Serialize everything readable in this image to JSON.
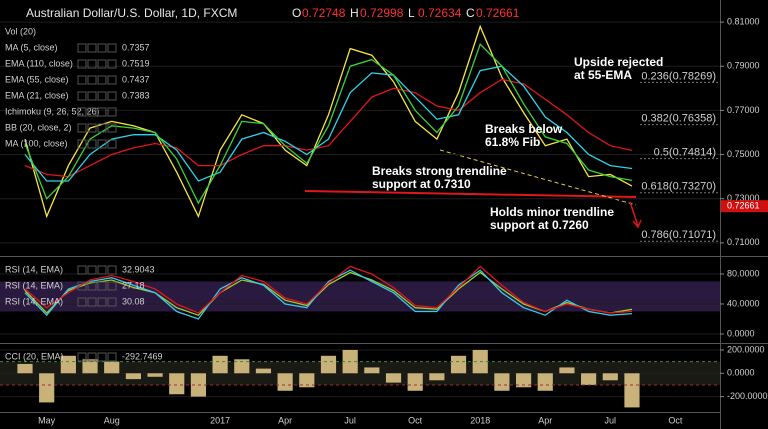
{
  "chart_data": [
    {
      "type": "line",
      "title": "Australian Dollar/U.S. Dollar, 1D, FXCM",
      "ohlc": [
        {
          "label": "O",
          "value": 0.72748
        },
        {
          "label": "H",
          "value": 0.72998
        },
        {
          "label": "L",
          "value": 0.72634
        },
        {
          "label": "C",
          "value": 0.72661
        }
      ],
      "indicators": [
        "Vol (20)",
        "Ichimoku (9, 26, 52, 26)",
        "BB (20, close, 2)",
        "MA (100, close)"
      ],
      "series": [
        {
          "name": "MA (5, close)",
          "color": "#f5e642",
          "values": [
            0.757,
            0.722,
            0.745,
            0.762,
            0.765,
            0.763,
            0.76,
            0.742,
            0.722,
            0.752,
            0.768,
            0.764,
            0.752,
            0.745,
            0.768,
            0.798,
            0.795,
            0.783,
            0.765,
            0.757,
            0.778,
            0.808,
            0.785,
            0.769,
            0.754,
            0.757,
            0.74,
            0.741,
            0.7357,
            null,
            null,
            null
          ]
        },
        {
          "name": "EMA (110, close)",
          "color": "#e0161b",
          "values": [
            0.745,
            0.741,
            0.74,
            0.745,
            0.75,
            0.753,
            0.755,
            0.753,
            0.745,
            0.745,
            0.75,
            0.754,
            0.754,
            0.752,
            0.754,
            0.765,
            0.776,
            0.78,
            0.778,
            0.772,
            0.77,
            0.778,
            0.784,
            0.782,
            0.775,
            0.768,
            0.76,
            0.754,
            0.7519,
            null,
            null,
            null
          ]
        },
        {
          "name": "EMA (55, close)",
          "color": "#2fd3e8",
          "values": [
            0.75,
            0.738,
            0.738,
            0.75,
            0.757,
            0.759,
            0.759,
            0.752,
            0.738,
            0.742,
            0.757,
            0.76,
            0.756,
            0.75,
            0.757,
            0.778,
            0.787,
            0.786,
            0.776,
            0.766,
            0.768,
            0.788,
            0.79,
            0.781,
            0.767,
            0.76,
            0.75,
            0.745,
            0.7437,
            null,
            null,
            null
          ]
        },
        {
          "name": "EMA (21, close)",
          "color": "#3bd23b",
          "values": [
            0.755,
            0.73,
            0.74,
            0.757,
            0.763,
            0.762,
            0.76,
            0.748,
            0.728,
            0.745,
            0.765,
            0.764,
            0.754,
            0.746,
            0.763,
            0.79,
            0.793,
            0.786,
            0.77,
            0.76,
            0.772,
            0.8,
            0.79,
            0.773,
            0.758,
            0.755,
            0.743,
            0.74,
            0.7383,
            null,
            null,
            null
          ]
        }
      ],
      "ylim": [
        0.7045,
        0.82
      ],
      "yticks": [
        {
          "value": 0.71,
          "label": "0.71000"
        },
        {
          "value": 0.73,
          "label": "0.73000"
        },
        {
          "value": 0.75,
          "label": "0.75000"
        },
        {
          "value": 0.77,
          "label": "0.77000"
        },
        {
          "value": 0.79,
          "label": "0.79000"
        },
        {
          "value": 0.81,
          "label": "0.81000"
        }
      ],
      "fib": [
        {
          "label": "0.236(0.78269)",
          "value": 0.78269,
          "color": "#ffffff"
        },
        {
          "label": "0.382(0.76358)",
          "value": 0.76358,
          "color": "#ffffff"
        },
        {
          "label": "0.5(0.74814)",
          "value": 0.74814,
          "color": "#4f8fe0"
        },
        {
          "label": "0.618(0.73270)",
          "value": 0.7327,
          "color": "#ffffff"
        },
        {
          "label": "0.786(0.71071)",
          "value": 0.71071,
          "color": "#ffffff"
        }
      ],
      "annotations": [
        "Upside rejected at 55-EMA",
        "Breaks below 61.8% Fib",
        "Breaks strong trendline support at 0.7310",
        "Holds minor trendline support at 0.7260"
      ]
    },
    {
      "type": "line",
      "series": [
        {
          "name": "RSI (14, EMA)",
          "color": "#9acd32",
          "values": [
            58,
            28,
            58,
            68,
            72,
            62,
            55,
            35,
            25,
            55,
            72,
            66,
            45,
            38,
            66,
            82,
            72,
            58,
            35,
            33,
            60,
            82,
            60,
            40,
            30,
            42,
            33,
            28,
            32.9043,
            null,
            null,
            null
          ]
        },
        {
          "name": "RSI (14, EMA)",
          "color": "#38c8e8",
          "values": [
            55,
            25,
            60,
            70,
            75,
            65,
            55,
            30,
            20,
            60,
            75,
            65,
            40,
            35,
            70,
            85,
            70,
            55,
            30,
            30,
            65,
            85,
            55,
            35,
            25,
            45,
            30,
            25,
            27.18,
            null,
            null,
            null
          ]
        },
        {
          "name": "RSI (14, EMA)",
          "color": "#e0161b",
          "values": [
            60,
            35,
            55,
            72,
            78,
            70,
            60,
            40,
            28,
            55,
            78,
            70,
            48,
            40,
            68,
            90,
            80,
            62,
            38,
            35,
            62,
            90,
            65,
            42,
            30,
            40,
            33,
            28,
            30.08,
            null,
            null,
            null
          ]
        }
      ],
      "ylim": [
        -10.7,
        101.3
      ],
      "yticks": [
        {
          "value": 0,
          "label": "0.0000"
        },
        {
          "value": 40,
          "label": "40.0000"
        },
        {
          "value": 80,
          "label": "80.0000"
        }
      ]
    },
    {
      "type": "bar",
      "categories": [
        null,
        "May",
        null,
        null,
        "Aug",
        null,
        null,
        null,
        null,
        "2017",
        null,
        null,
        "Apr",
        null,
        null,
        "Jul",
        null,
        null,
        "Oct",
        null,
        null,
        "2018",
        null,
        null,
        "Apr",
        null,
        null,
        "Jul",
        null,
        null,
        "Oct",
        null
      ],
      "series": [
        {
          "name": "CCI (20, EMA)",
          "color": "#c8b27a",
          "values": [
            80,
            -250,
            150,
            120,
            100,
            -50,
            -30,
            -180,
            -200,
            150,
            120,
            40,
            -150,
            -120,
            150,
            200,
            50,
            -80,
            -150,
            -60,
            150,
            200,
            -150,
            -120,
            -150,
            50,
            -100,
            -60,
            -292.7469,
            null,
            null,
            null
          ]
        }
      ],
      "ylim": [
        -332,
        242.5
      ],
      "yticks": [
        {
          "value": -200,
          "label": "-200.0000"
        },
        {
          "value": 0,
          "label": "0.0000"
        },
        {
          "value": 200,
          "label": "200.0000"
        }
      ]
    }
  ]
}
